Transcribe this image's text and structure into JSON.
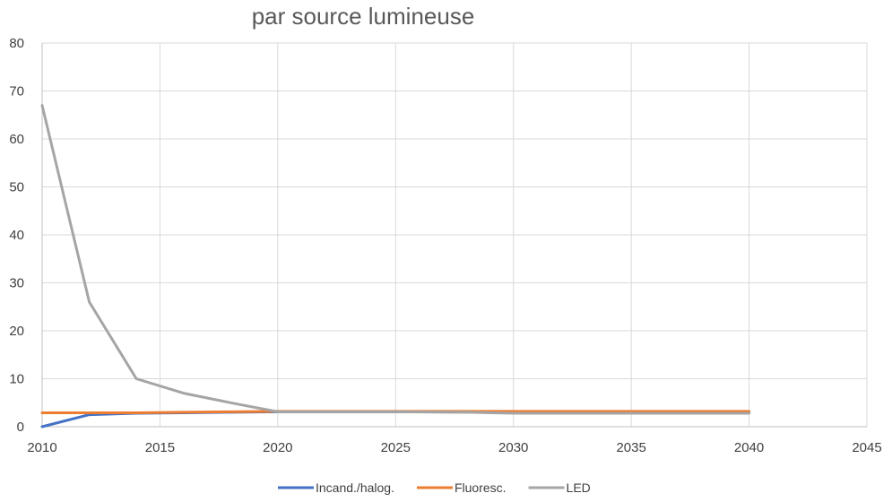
{
  "chart_data": {
    "type": "line",
    "title": "par source lumineuse",
    "xlabel": "",
    "ylabel": "",
    "xlim": [
      2010,
      2045
    ],
    "ylim": [
      0,
      80
    ],
    "x_ticks": [
      2010,
      2015,
      2020,
      2025,
      2030,
      2035,
      2040,
      2045
    ],
    "y_ticks": [
      0,
      10,
      20,
      30,
      40,
      50,
      60,
      70,
      80
    ],
    "grid": true,
    "legend_position": "bottom",
    "series": [
      {
        "name": "Incand./halog.",
        "color": "#4472c4",
        "x": [
          2010,
          2012,
          2014,
          2016,
          2018,
          2020,
          2025,
          2030,
          2035,
          2040
        ],
        "y": [
          0,
          2.5,
          2.8,
          2.9,
          3.0,
          3.1,
          3.1,
          3.0,
          3.0,
          3.0
        ]
      },
      {
        "name": "Fluoresc.",
        "color": "#ed7d31",
        "x": [
          2010,
          2012,
          2014,
          2016,
          2018,
          2020,
          2025,
          2030,
          2035,
          2040
        ],
        "y": [
          2.9,
          2.9,
          2.9,
          3.0,
          3.1,
          3.2,
          3.2,
          3.2,
          3.2,
          3.2
        ]
      },
      {
        "name": "LED",
        "color": "#a5a5a5",
        "x": [
          2010,
          2012,
          2014,
          2016,
          2018,
          2020,
          2025,
          2028,
          2030,
          2035,
          2040
        ],
        "y": [
          67,
          26,
          10,
          7,
          5,
          3.1,
          3.1,
          3.0,
          2.8,
          2.8,
          2.8
        ]
      }
    ]
  }
}
